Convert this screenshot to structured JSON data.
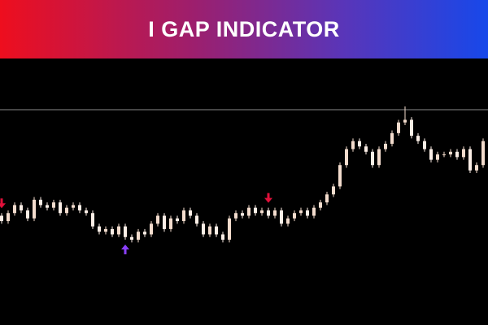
{
  "chart_data": {
    "type": "candlestick",
    "title": "I GAP INDICATOR",
    "ylim": [
      0,
      100
    ],
    "hline": 80.8,
    "hline_color": "#8a8a8a",
    "up_color": "#f3dccd",
    "down_color": "#fbeee6",
    "ohlc": [
      [
        41,
        42,
        38,
        39
      ],
      [
        39,
        43,
        38,
        42
      ],
      [
        42,
        46,
        41,
        45
      ],
      [
        45,
        46,
        42,
        43
      ],
      [
        43,
        44,
        39,
        40
      ],
      [
        40,
        48,
        39,
        47
      ],
      [
        47,
        48,
        44,
        45
      ],
      [
        45,
        46,
        43,
        44
      ],
      [
        44,
        47,
        43,
        46
      ],
      [
        46,
        47,
        41,
        42
      ],
      [
        42,
        45,
        41,
        44
      ],
      [
        44,
        46,
        43,
        45
      ],
      [
        45,
        46,
        42,
        43
      ],
      [
        43,
        44,
        41,
        42
      ],
      [
        42,
        43,
        36,
        37
      ],
      [
        37,
        38,
        34,
        35
      ],
      [
        35,
        37,
        34,
        36
      ],
      [
        36,
        37,
        33,
        34
      ],
      [
        34,
        38,
        33,
        37
      ],
      [
        37,
        38,
        32,
        33
      ],
      [
        33,
        34,
        31,
        32
      ],
      [
        32,
        36,
        31,
        35
      ],
      [
        35,
        36,
        33,
        34
      ],
      [
        34,
        39,
        33,
        38
      ],
      [
        38,
        42,
        37,
        41
      ],
      [
        41,
        42,
        35,
        36
      ],
      [
        36,
        41,
        35,
        40
      ],
      [
        40,
        41,
        38,
        39
      ],
      [
        39,
        44,
        38,
        43
      ],
      [
        43,
        44,
        40,
        41
      ],
      [
        41,
        42,
        37,
        38
      ],
      [
        38,
        39,
        33,
        34
      ],
      [
        34,
        38,
        33,
        37
      ],
      [
        37,
        38,
        33,
        34
      ],
      [
        34,
        35,
        31,
        32
      ],
      [
        32,
        41,
        31,
        40
      ],
      [
        40,
        43,
        39,
        42
      ],
      [
        42,
        43,
        40,
        41
      ],
      [
        41,
        45,
        40,
        44
      ],
      [
        44,
        45,
        41,
        42
      ],
      [
        42,
        44,
        41,
        43
      ],
      [
        43,
        44,
        40,
        41
      ],
      [
        41,
        44,
        40,
        43
      ],
      [
        43,
        44,
        37,
        38
      ],
      [
        38,
        41,
        37,
        40
      ],
      [
        40,
        43,
        39,
        42
      ],
      [
        42,
        44,
        41,
        43
      ],
      [
        43,
        44,
        40,
        41
      ],
      [
        41,
        45,
        40,
        44
      ],
      [
        44,
        47,
        43,
        46
      ],
      [
        46,
        50,
        45,
        49
      ],
      [
        49,
        53,
        48,
        52
      ],
      [
        52,
        61,
        51,
        60
      ],
      [
        60,
        67,
        59,
        66
      ],
      [
        66,
        70,
        65,
        69
      ],
      [
        69,
        70,
        66,
        67
      ],
      [
        67,
        68,
        64,
        65
      ],
      [
        65,
        66,
        59,
        60
      ],
      [
        60,
        67,
        59,
        66
      ],
      [
        66,
        69,
        65,
        68
      ],
      [
        68,
        73,
        67,
        72
      ],
      [
        72,
        77,
        71,
        76
      ],
      [
        76,
        82,
        75,
        77
      ],
      [
        77,
        78,
        70,
        71
      ],
      [
        71,
        72,
        68,
        69
      ],
      [
        69,
        70,
        65,
        66
      ],
      [
        66,
        67,
        61,
        62
      ],
      [
        62,
        65,
        61,
        64
      ],
      [
        64,
        65,
        63,
        64
      ],
      [
        64,
        66,
        63,
        65
      ],
      [
        65,
        66,
        62,
        63
      ],
      [
        63,
        67,
        62,
        66
      ],
      [
        66,
        67,
        57,
        58
      ],
      [
        58,
        61,
        57,
        60
      ],
      [
        60,
        70,
        59,
        69
      ]
    ],
    "signals": [
      {
        "index": 0,
        "direction": "down",
        "color": "#e0103a"
      },
      {
        "index": 19,
        "direction": "up",
        "color": "#8a3ffc"
      },
      {
        "index": 41,
        "direction": "down",
        "color": "#e0103a"
      }
    ]
  }
}
